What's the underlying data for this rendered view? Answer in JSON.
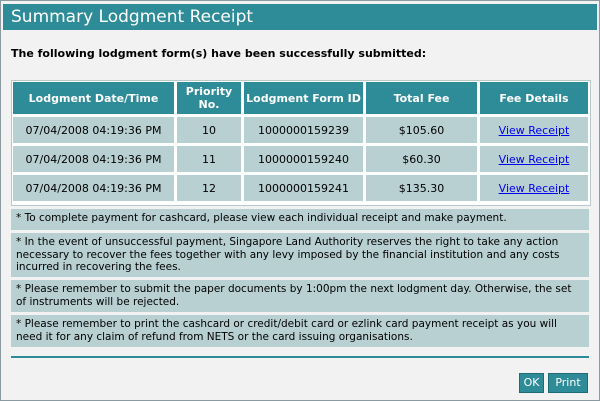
{
  "window": {
    "title": "Summary Lodgment Receipt"
  },
  "intro_text": "The following lodgment form(s) have been successfully submitted:",
  "table": {
    "headers": [
      "Lodgment Date/Time",
      "Priority No.",
      "Lodgment Form ID",
      "Total Fee",
      "Fee Details"
    ],
    "rows": [
      {
        "datetime": "07/04/2008 04:19:36 PM",
        "priority": "10",
        "form_id": "1000000159239",
        "fee": "$105.60",
        "link": "View Receipt"
      },
      {
        "datetime": "07/04/2008 04:19:36 PM",
        "priority": "11",
        "form_id": "1000000159240",
        "fee": "$60.30",
        "link": "View Receipt"
      },
      {
        "datetime": "07/04/2008 04:19:36 PM",
        "priority": "12",
        "form_id": "1000000159241",
        "fee": "$135.30",
        "link": "View Receipt"
      }
    ]
  },
  "notes": [
    "* To complete payment for cashcard, please view each individual receipt and make payment.",
    "* In the event of unsuccessful payment, Singapore Land Authority reserves the right to take any action necessary to recover the fees together with any levy imposed by the financial institution and any costs incurred in recovering the fees.",
    "* Please remember to submit the paper documents by 1:00pm the next lodgment day. Otherwise, the set of instruments will be rejected.",
    "* Please remember to print the cashcard or credit/debit card or ezlink card payment receipt as you will need it for any claim of refund from NETS or the card issuing organisations."
  ],
  "buttons": {
    "ok": "OK",
    "print": "Print"
  },
  "colors": {
    "accent": "#2e8b98",
    "row_bg": "#b9d0d3",
    "link": "#0000ee"
  }
}
